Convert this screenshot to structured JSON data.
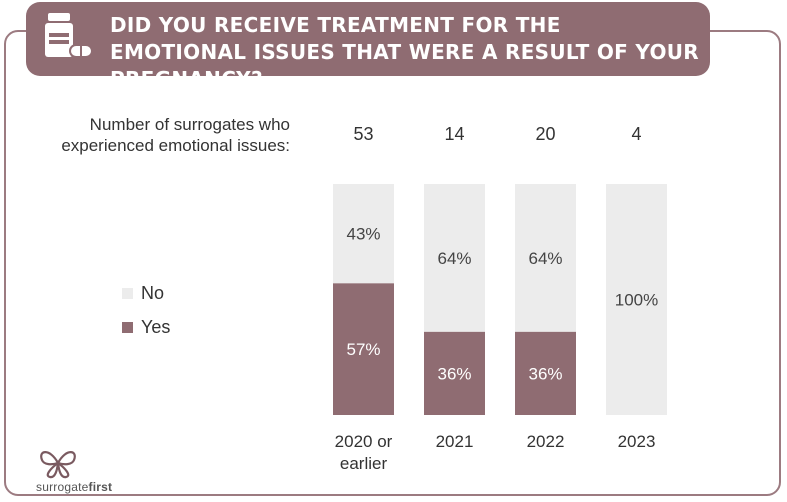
{
  "header": {
    "title": "DID YOU RECEIVE TREATMENT FOR THE EMOTIONAL ISSUES THAT WERE A RESULT OF YOUR PREGNANCY?",
    "icon": "pill-bottle-icon"
  },
  "count_label": "Number of surrogates who experienced emotional issues:",
  "brand": {
    "name_part1": "surrogate",
    "name_part2": "first",
    "icon": "butterfly-logo-icon"
  },
  "colors": {
    "no": "#ececec",
    "yes": "#8f6c72",
    "banner": "#8f6c72"
  },
  "chart_data": {
    "type": "bar",
    "stacked": true,
    "percent": true,
    "categories": [
      "2020 or earlier",
      "2021",
      "2022",
      "2023"
    ],
    "counts": [
      53,
      14,
      20,
      4
    ],
    "series": [
      {
        "name": "Yes",
        "values": [
          57,
          36,
          36,
          0
        ]
      },
      {
        "name": "No",
        "values": [
          43,
          64,
          64,
          100
        ]
      }
    ],
    "ylim": [
      0,
      100
    ],
    "legend_position": "left"
  }
}
